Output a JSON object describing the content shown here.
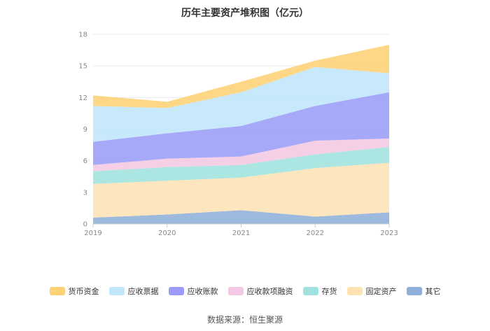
{
  "title": "历年主要资产堆积图（亿元）",
  "source": "数据来源：恒生聚源",
  "chart_data": {
    "type": "area",
    "stacked": true,
    "categories": [
      "2019",
      "2020",
      "2021",
      "2022",
      "2023"
    ],
    "ylim": [
      0,
      18
    ],
    "yticks": [
      0,
      3,
      6,
      9,
      12,
      15,
      18
    ],
    "grid": true,
    "legend_position": "bottom",
    "series": [
      {
        "name": "其它",
        "color": "#8fafd9",
        "values": [
          0.6,
          0.9,
          1.3,
          0.7,
          1.1
        ]
      },
      {
        "name": "固定资产",
        "color": "#fde2b4",
        "values": [
          3.2,
          3.2,
          3.1,
          4.6,
          4.7
        ]
      },
      {
        "name": "存货",
        "color": "#9fe2df",
        "values": [
          1.2,
          1.3,
          1.2,
          1.3,
          1.5
        ]
      },
      {
        "name": "应收款项融资",
        "color": "#f2c8e3",
        "values": [
          0.6,
          0.8,
          0.8,
          1.3,
          0.8
        ]
      },
      {
        "name": "应收账款",
        "color": "#9a9cf7",
        "values": [
          2.2,
          2.4,
          2.9,
          3.3,
          4.4
        ]
      },
      {
        "name": "应收票据",
        "color": "#bfe6fa",
        "values": [
          3.4,
          2.4,
          3.2,
          3.7,
          1.8
        ]
      },
      {
        "name": "货币资金",
        "color": "#fdd275",
        "values": [
          1.0,
          0.6,
          1.0,
          0.6,
          2.7
        ]
      }
    ]
  }
}
